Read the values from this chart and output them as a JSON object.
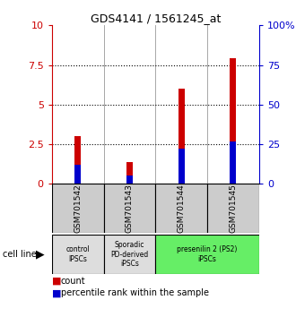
{
  "title": "GDS4141 / 1561245_at",
  "samples": [
    "GSM701542",
    "GSM701543",
    "GSM701544",
    "GSM701545"
  ],
  "count_values": [
    3.0,
    1.35,
    6.0,
    7.9
  ],
  "percentile_values": [
    1.2,
    0.55,
    2.2,
    2.7
  ],
  "ylim": [
    0,
    10
  ],
  "yticks_left": [
    0,
    2.5,
    5.0,
    7.5,
    10
  ],
  "ytick_labels_left": [
    "0",
    "2.5",
    "5",
    "7.5",
    "10"
  ],
  "yticks_right_vals": [
    0,
    2.5,
    5.0,
    7.5,
    10
  ],
  "ytick_labels_right": [
    "0",
    "25",
    "50",
    "75",
    "100%"
  ],
  "dotted_lines": [
    2.5,
    5.0,
    7.5
  ],
  "bar_width": 0.12,
  "count_color": "#cc0000",
  "percentile_color": "#0000cc",
  "groups": [
    {
      "label": "control\nIPSCs",
      "color": "#dddddd",
      "start": 0,
      "end": 1
    },
    {
      "label": "Sporadic\nPD-derived\niPSCs",
      "color": "#dddddd",
      "start": 1,
      "end": 2
    },
    {
      "label": "presenilin 2 (PS2)\niPSCs",
      "color": "#66ee66",
      "start": 2,
      "end": 4
    }
  ],
  "cell_line_label": "cell line",
  "legend_count": "count",
  "legend_percentile": "percentile rank within the sample",
  "tick_color_left": "#cc0000",
  "tick_color_right": "#0000cc",
  "sample_box_color": "#cccccc"
}
